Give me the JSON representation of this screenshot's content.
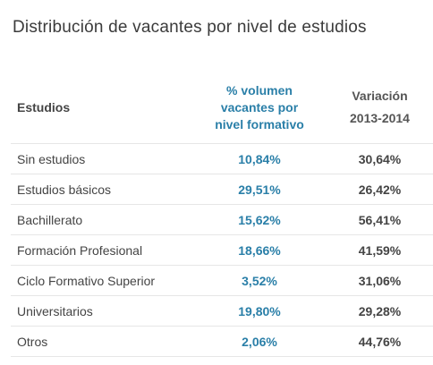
{
  "title": "Distribución de vacantes por nivel de estudios",
  "table": {
    "headers": {
      "estudios": "Estudios",
      "volumen_lines": [
        "% volumen",
        "vacantes por",
        "nivel formativo"
      ],
      "variacion_lines": [
        "Variación",
        "2013-2014"
      ]
    },
    "rows": [
      {
        "estudios": "Sin estudios",
        "volumen": "10,84%",
        "variacion": "30,64%"
      },
      {
        "estudios": "Estudios básicos",
        "volumen": "29,51%",
        "variacion": "26,42%"
      },
      {
        "estudios": "Bachillerato",
        "volumen": "15,62%",
        "variacion": "56,41%"
      },
      {
        "estudios": "Formación Profesional",
        "volumen": "18,66%",
        "variacion": "41,59%"
      },
      {
        "estudios": "Ciclo Formativo Superior",
        "volumen": "3,52%",
        "variacion": "31,06%"
      },
      {
        "estudios": "Universitarios",
        "volumen": "19,80%",
        "variacion": "29,28%"
      },
      {
        "estudios": "Otros",
        "volumen": "2,06%",
        "variacion": "44,76%"
      }
    ]
  },
  "colors": {
    "accent": "#2a7fa8",
    "text": "#444444",
    "divider": "#e6e6e6"
  }
}
